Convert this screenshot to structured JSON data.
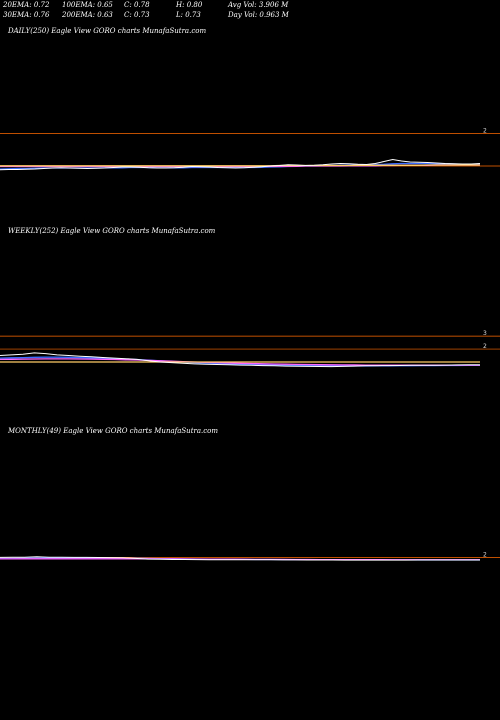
{
  "stats": {
    "row1": [
      "20EMA: 0.72",
      "100EMA: 0.65",
      "C: 0.78",
      "H: 0.80",
      "Avg Vol: 3.906  M"
    ],
    "row2": [
      "30EMA: 0.76",
      "200EMA: 0.63",
      "C: 0.73",
      "L: 0.73",
      "Day Vol: 0.963 M"
    ]
  },
  "colors": {
    "background": "#000000",
    "price": "#ffffff",
    "ema_fast": "#3b6cff",
    "ema_mid": "#ff66ff",
    "ema_slow": "#ffcc66",
    "reference": "#ff6a00"
  },
  "panels": [
    {
      "title": "DAILY(250) Eagle  View  GORO charts MunafaSutra.com",
      "ref_labels": [
        "2"
      ]
    },
    {
      "title": "WEEKLY(252) Eagle  View  GORO charts MunafaSutra.com",
      "ref_labels": [
        "3",
        "2"
      ]
    },
    {
      "title": "MONTHLY(49) Eagle  View  GORO charts MunafaSutra.com",
      "ref_labels": [
        "2"
      ]
    }
  ],
  "chart_data": [
    {
      "type": "line",
      "series": [
        {
          "role": "price",
          "values": [
            0.55,
            0.56,
            0.56,
            0.57,
            0.58,
            0.6,
            0.62,
            0.63,
            0.62,
            0.61,
            0.6,
            0.61,
            0.62,
            0.64,
            0.66,
            0.66,
            0.65,
            0.63,
            0.62,
            0.62,
            0.63,
            0.65,
            0.68,
            0.67,
            0.66,
            0.64,
            0.63,
            0.62,
            0.63,
            0.65,
            0.67,
            0.7,
            0.72,
            0.75,
            0.74,
            0.72,
            0.73,
            0.75,
            0.78,
            0.8,
            0.79,
            0.77,
            0.76,
            0.8,
            0.88,
            0.96,
            0.9,
            0.86,
            0.85,
            0.84,
            0.82,
            0.8,
            0.79,
            0.78,
            0.78,
            0.8
          ]
        },
        {
          "role": "ema",
          "values": [
            0.58,
            0.59,
            0.6,
            0.6,
            0.61,
            0.62,
            0.62,
            0.62,
            0.62,
            0.62,
            0.62,
            0.62,
            0.63,
            0.63,
            0.63,
            0.64,
            0.64,
            0.64,
            0.63,
            0.63,
            0.63,
            0.63,
            0.64,
            0.64,
            0.64,
            0.64,
            0.64,
            0.64,
            0.64,
            0.64,
            0.65,
            0.66,
            0.67,
            0.68,
            0.69,
            0.7,
            0.7,
            0.71,
            0.72,
            0.73,
            0.74,
            0.74,
            0.75,
            0.76,
            0.77,
            0.79,
            0.8,
            0.8,
            0.8,
            0.8,
            0.79,
            0.79,
            0.78,
            0.77,
            0.77,
            0.77
          ]
        },
        {
          "role": "ema2",
          "values": [
            0.68,
            0.68,
            0.68,
            0.68,
            0.68,
            0.68,
            0.68,
            0.68,
            0.68,
            0.68,
            0.68,
            0.68,
            0.68,
            0.68,
            0.68,
            0.68,
            0.68,
            0.68,
            0.68,
            0.68,
            0.68,
            0.68,
            0.68,
            0.68,
            0.68,
            0.68,
            0.68,
            0.68,
            0.68,
            0.68,
            0.69,
            0.69,
            0.69,
            0.69,
            0.69,
            0.7,
            0.7,
            0.7,
            0.7,
            0.7,
            0.71,
            0.71,
            0.71,
            0.71,
            0.72,
            0.72,
            0.73,
            0.73,
            0.73,
            0.73,
            0.74,
            0.74,
            0.74,
            0.74,
            0.74,
            0.74
          ]
        },
        {
          "role": "ema3",
          "values": [
            0.71,
            0.71,
            0.71,
            0.71,
            0.71,
            0.71,
            0.71,
            0.71,
            0.71,
            0.71,
            0.71,
            0.71,
            0.71,
            0.71,
            0.71,
            0.71,
            0.71,
            0.71,
            0.71,
            0.71,
            0.71,
            0.71,
            0.71,
            0.71,
            0.71,
            0.71,
            0.71,
            0.71,
            0.71,
            0.71,
            0.71,
            0.71,
            0.72,
            0.72,
            0.72,
            0.72,
            0.72,
            0.72,
            0.72,
            0.72,
            0.72,
            0.73,
            0.73,
            0.73,
            0.73,
            0.73,
            0.73,
            0.73,
            0.73,
            0.74,
            0.74,
            0.74,
            0.74,
            0.74,
            0.74,
            0.74
          ]
        }
      ],
      "reference_lines": [
        2,
        0.7
      ],
      "ylim": [
        0.3,
        2.3
      ]
    },
    {
      "type": "line",
      "series": [
        {
          "role": "price",
          "values": [
            1.5,
            1.55,
            1.6,
            1.7,
            1.65,
            1.55,
            1.5,
            1.45,
            1.4,
            1.35,
            1.3,
            1.25,
            1.2,
            1.1,
            1.0,
            0.95,
            0.9,
            0.85,
            0.82,
            0.8,
            0.78,
            0.76,
            0.74,
            0.72,
            0.7,
            0.68,
            0.67,
            0.66,
            0.65,
            0.64,
            0.66,
            0.68,
            0.7,
            0.71,
            0.72,
            0.73,
            0.74,
            0.74,
            0.75,
            0.76,
            0.77,
            0.78,
            0.78
          ]
        },
        {
          "role": "ema",
          "values": [
            1.3,
            1.32,
            1.34,
            1.36,
            1.37,
            1.37,
            1.36,
            1.34,
            1.32,
            1.29,
            1.26,
            1.23,
            1.19,
            1.14,
            1.09,
            1.04,
            0.99,
            0.95,
            0.91,
            0.88,
            0.85,
            0.82,
            0.8,
            0.78,
            0.76,
            0.74,
            0.72,
            0.71,
            0.7,
            0.69,
            0.69,
            0.69,
            0.69,
            0.7,
            0.7,
            0.71,
            0.71,
            0.72,
            0.72,
            0.73,
            0.73,
            0.74,
            0.74
          ]
        },
        {
          "role": "ema2",
          "values": [
            1.2,
            1.21,
            1.22,
            1.23,
            1.24,
            1.24,
            1.24,
            1.23,
            1.22,
            1.21,
            1.19,
            1.17,
            1.15,
            1.12,
            1.09,
            1.06,
            1.03,
            1.0,
            0.97,
            0.95,
            0.92,
            0.9,
            0.88,
            0.86,
            0.84,
            0.83,
            0.81,
            0.8,
            0.79,
            0.78,
            0.77,
            0.77,
            0.76,
            0.76,
            0.76,
            0.76,
            0.76,
            0.76,
            0.76,
            0.76,
            0.76,
            0.76,
            0.76
          ]
        },
        {
          "role": "ema3",
          "values": [
            1.0,
            1.0,
            1.0,
            1.0,
            1.0,
            1.0,
            1.0,
            1.0,
            1.0,
            1.0,
            1.0,
            1.0,
            1.0,
            1.0,
            1.0,
            1.0,
            1.0,
            1.0,
            1.0,
            1.0,
            1.0,
            1.0,
            1.0,
            1.0,
            1.0,
            1.0,
            1.0,
            1.0,
            1.0,
            1.0,
            1.0,
            1.0,
            1.0,
            1.0,
            1.0,
            1.0,
            1.0,
            1.0,
            1.0,
            1.0,
            1.0,
            1.0,
            1.0
          ]
        }
      ],
      "reference_lines": [
        3,
        2
      ],
      "ylim": [
        0.3,
        3.4
      ]
    },
    {
      "type": "line",
      "series": [
        {
          "role": "price",
          "values": [
            2.0,
            2.05,
            2.1,
            2.3,
            2.1,
            2.05,
            2.0,
            1.98,
            1.95,
            1.9,
            1.85,
            1.5,
            1.2,
            1.1,
            1.0,
            0.98,
            0.95,
            0.92,
            0.9,
            0.88,
            0.86,
            0.85,
            0.84,
            0.82,
            0.8,
            0.78,
            0.76,
            0.75,
            0.74,
            0.72,
            0.7,
            0.7,
            0.72,
            0.74,
            0.75,
            0.76,
            0.77,
            0.78,
            0.78,
            0.78
          ]
        },
        {
          "role": "ema",
          "values": [
            1.5,
            1.52,
            1.55,
            1.6,
            1.62,
            1.63,
            1.64,
            1.65,
            1.65,
            1.65,
            1.64,
            1.6,
            1.52,
            1.44,
            1.37,
            1.3,
            1.24,
            1.18,
            1.13,
            1.09,
            1.05,
            1.02,
            0.99,
            0.96,
            0.94,
            0.92,
            0.9,
            0.88,
            0.86,
            0.84,
            0.82,
            0.81,
            0.8,
            0.8,
            0.79,
            0.79,
            0.79,
            0.79,
            0.79,
            0.79
          ]
        },
        {
          "role": "ema2",
          "values": [
            1.3,
            1.3,
            1.31,
            1.32,
            1.33,
            1.34,
            1.34,
            1.35,
            1.35,
            1.35,
            1.35,
            1.34,
            1.32,
            1.3,
            1.27,
            1.24,
            1.21,
            1.18,
            1.15,
            1.12,
            1.1,
            1.07,
            1.05,
            1.03,
            1.01,
            0.99,
            0.97,
            0.95,
            0.93,
            0.92,
            0.9,
            0.89,
            0.88,
            0.87,
            0.86,
            0.85,
            0.85,
            0.84,
            0.84,
            0.84
          ]
        }
      ],
      "reference_lines": [
        2
      ],
      "ylim": [
        0.3,
        12
      ]
    }
  ]
}
